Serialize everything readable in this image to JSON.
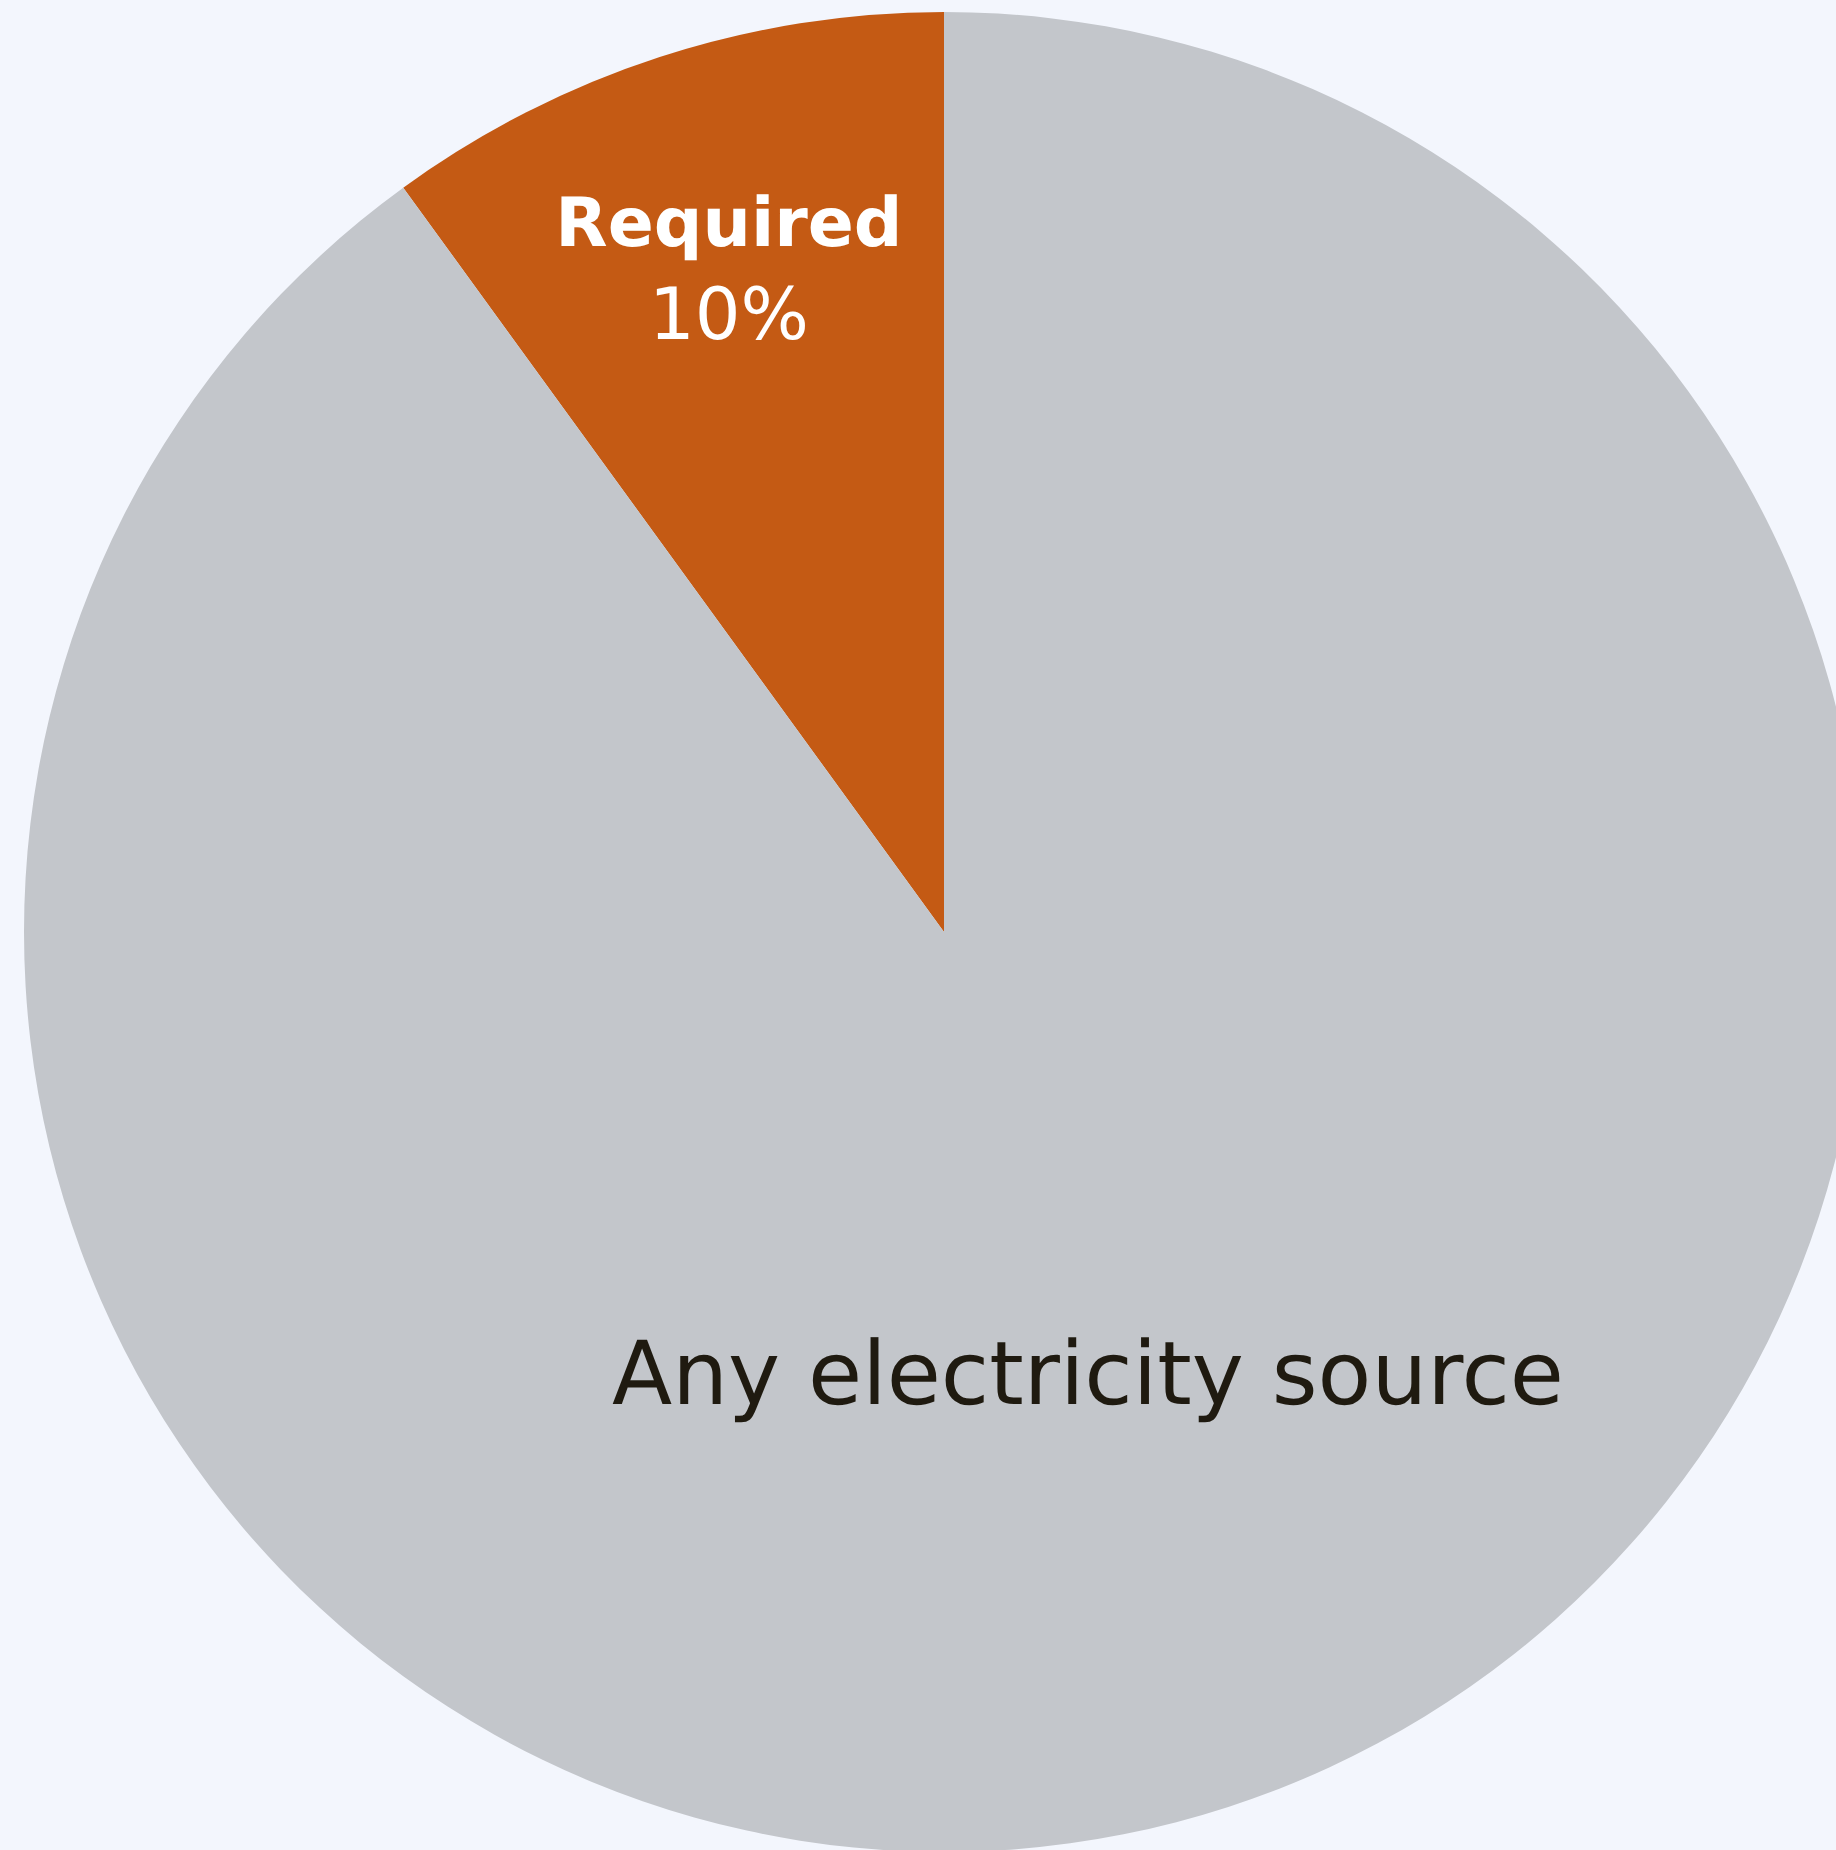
{
  "chart_data": {
    "type": "pie",
    "categories": [
      "Required",
      "Any electricity source"
    ],
    "values": [
      10,
      90
    ],
    "colors": [
      "#c45a14",
      "#c3c6cb"
    ],
    "value_labels": [
      "10%",
      null
    ],
    "legend": false
  }
}
